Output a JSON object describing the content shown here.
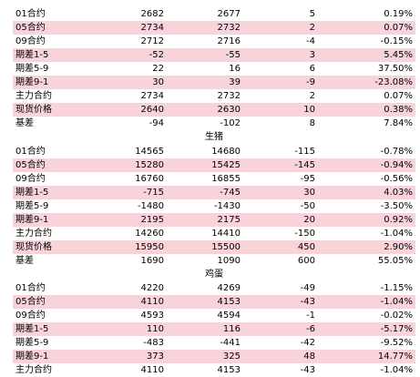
{
  "sections": [
    {
      "title": "",
      "rows": [
        {
          "label": "",
          "v1": "",
          "v2": "",
          "diff": "",
          "pct": "",
          "pink": false
        },
        {
          "label": "01合约",
          "v1": "2682",
          "v2": "2677",
          "diff": "5",
          "pct": "0.19%",
          "pink": false
        },
        {
          "label": "05合约",
          "v1": "2734",
          "v2": "2732",
          "diff": "2",
          "pct": "0.07%",
          "pink": true
        },
        {
          "label": "09合约",
          "v1": "2712",
          "v2": "2716",
          "diff": "-4",
          "pct": "-0.15%",
          "pink": false
        },
        {
          "label": "期差1-5",
          "v1": "-52",
          "v2": "-55",
          "diff": "3",
          "pct": "5.45%",
          "pink": true
        },
        {
          "label": "期差5-9",
          "v1": "22",
          "v2": "16",
          "diff": "6",
          "pct": "37.50%",
          "pink": false
        },
        {
          "label": "期差9-1",
          "v1": "30",
          "v2": "39",
          "diff": "-9",
          "pct": "-23.08%",
          "pink": true
        },
        {
          "label": "主力合约",
          "v1": "2734",
          "v2": "2732",
          "diff": "2",
          "pct": "0.07%",
          "pink": false
        },
        {
          "label": "现货价格",
          "v1": "2640",
          "v2": "2630",
          "diff": "10",
          "pct": "0.38%",
          "pink": true
        },
        {
          "label": "基差",
          "v1": "-94",
          "v2": "-102",
          "diff": "8",
          "pct": "7.84%",
          "pink": false
        }
      ]
    },
    {
      "title": "生猪",
      "rows": [
        {
          "label": "01合约",
          "v1": "14565",
          "v2": "14680",
          "diff": "-115",
          "pct": "-0.78%",
          "pink": false
        },
        {
          "label": "05合约",
          "v1": "15280",
          "v2": "15425",
          "diff": "-145",
          "pct": "-0.94%",
          "pink": true
        },
        {
          "label": "09合约",
          "v1": "16760",
          "v2": "16855",
          "diff": "-95",
          "pct": "-0.56%",
          "pink": false
        },
        {
          "label": "期差1-5",
          "v1": "-715",
          "v2": "-745",
          "diff": "30",
          "pct": "4.03%",
          "pink": true
        },
        {
          "label": "期差5-9",
          "v1": "-1480",
          "v2": "-1430",
          "diff": "-50",
          "pct": "-3.50%",
          "pink": false
        },
        {
          "label": "期差9-1",
          "v1": "2195",
          "v2": "2175",
          "diff": "20",
          "pct": "0.92%",
          "pink": true
        },
        {
          "label": "主力合约",
          "v1": "14260",
          "v2": "14410",
          "diff": "-150",
          "pct": "-1.04%",
          "pink": false
        },
        {
          "label": "现货价格",
          "v1": "15950",
          "v2": "15500",
          "diff": "450",
          "pct": "2.90%",
          "pink": true
        },
        {
          "label": "基差",
          "v1": "1690",
          "v2": "1090",
          "diff": "600",
          "pct": "55.05%",
          "pink": false
        }
      ]
    },
    {
      "title": "鸡蛋",
      "rows": [
        {
          "label": "01合约",
          "v1": "4220",
          "v2": "4269",
          "diff": "-49",
          "pct": "-1.15%",
          "pink": false
        },
        {
          "label": "05合约",
          "v1": "4110",
          "v2": "4153",
          "diff": "-43",
          "pct": "-1.04%",
          "pink": true
        },
        {
          "label": "09合约",
          "v1": "4593",
          "v2": "4594",
          "diff": "-1",
          "pct": "-0.02%",
          "pink": false
        },
        {
          "label": "期差1-5",
          "v1": "110",
          "v2": "116",
          "diff": "-6",
          "pct": "-5.17%",
          "pink": true
        },
        {
          "label": "期差5-9",
          "v1": "-483",
          "v2": "-441",
          "diff": "-42",
          "pct": "-9.52%",
          "pink": false
        },
        {
          "label": "期差9-1",
          "v1": "373",
          "v2": "325",
          "diff": "48",
          "pct": "14.77%",
          "pink": true
        },
        {
          "label": "主力合约",
          "v1": "4110",
          "v2": "4153",
          "diff": "-43",
          "pct": "-1.04%",
          "pink": false
        }
      ]
    }
  ]
}
